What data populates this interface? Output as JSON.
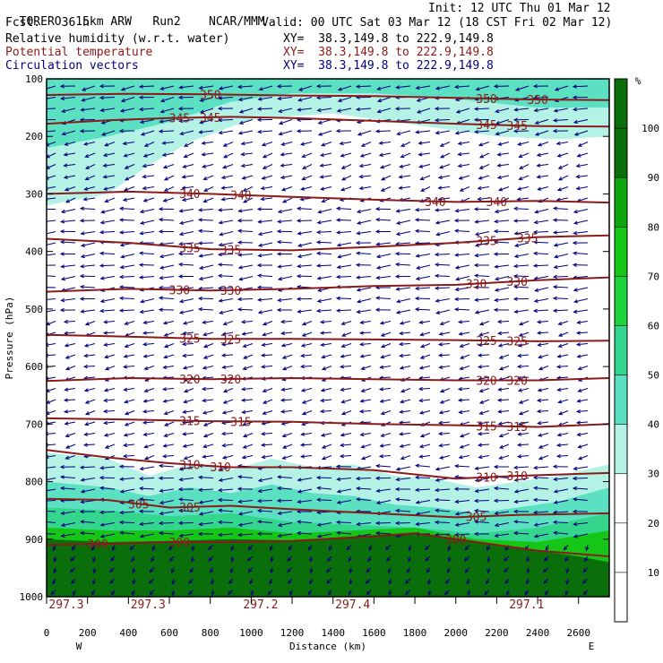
{
  "header": {
    "model": "TORERO",
    "grid": "15km ARW",
    "run": "Run2",
    "agency": "NCAR/MMM",
    "init": "Init: 12 UTC Thu 01 Mar 12",
    "fcst_label": "Fcst.",
    "fcst_value": "36 h",
    "valid": "Valid: 00 UTC Sat 03 Mar 12 (18 CST Fri 02 Mar 12)"
  },
  "fields": [
    {
      "label": "Relative humidity (w.r.t. water)",
      "xy": "XY=  38.3,149.8 to 222.9,149.8",
      "color": "#000000"
    },
    {
      "label": "Potential temperature",
      "xy": "XY=  38.3,149.8 to 222.9,149.8",
      "color": "#8b1a1a"
    },
    {
      "label": "Circulation vectors",
      "xy": "XY=  38.3,149.8 to 222.9,149.8",
      "color": "#00007a"
    }
  ],
  "chart_data": {
    "type": "cross-section",
    "xlabel": "Distance (km)",
    "ylabel": "Pressure (hPa)",
    "xlim": [
      0,
      2750
    ],
    "ylim": [
      1000,
      100
    ],
    "x_ticks": [
      0,
      200,
      400,
      600,
      800,
      1000,
      1200,
      1400,
      1600,
      1800,
      2000,
      2200,
      2400,
      2600
    ],
    "y_ticks": [
      100,
      200,
      300,
      400,
      500,
      600,
      700,
      800,
      900,
      1000
    ],
    "x_end_labels": {
      "left": "W",
      "right": "E"
    },
    "colorbar": {
      "unit": "%",
      "ticks": [
        10,
        20,
        30,
        40,
        50,
        60,
        70,
        80,
        90,
        100
      ],
      "bins": [
        {
          "from": 0,
          "to": 30,
          "color": "#ffffff"
        },
        {
          "from": 30,
          "to": 40,
          "color": "#b4f2e6"
        },
        {
          "from": 40,
          "to": 50,
          "color": "#5ce0c2"
        },
        {
          "from": 50,
          "to": 60,
          "color": "#34d68e"
        },
        {
          "from": 60,
          "to": 70,
          "color": "#1ed43c"
        },
        {
          "from": 70,
          "to": 80,
          "color": "#16c616"
        },
        {
          "from": 80,
          "to": 90,
          "color": "#0ea60e"
        },
        {
          "from": 90,
          "to": 110,
          "color": "#0a6e0a"
        }
      ]
    },
    "theta_contours": [
      {
        "value": 350,
        "labels_km": [
          800,
          2150,
          2400
        ],
        "p": [
          [
            0,
            128
          ],
          [
            400,
            126
          ],
          [
            800,
            127
          ],
          [
            1200,
            129
          ],
          [
            1600,
            130
          ],
          [
            2000,
            133
          ],
          [
            2400,
            136
          ],
          [
            2750,
            137
          ]
        ]
      },
      {
        "value": 345,
        "labels_km": [
          650,
          800,
          2150,
          2300
        ],
        "p": [
          [
            0,
            178
          ],
          [
            300,
            172
          ],
          [
            600,
            168
          ],
          [
            900,
            166
          ],
          [
            1200,
            168
          ],
          [
            1600,
            173
          ],
          [
            2000,
            178
          ],
          [
            2400,
            182
          ],
          [
            2750,
            183
          ]
        ]
      },
      {
        "value": 340,
        "labels_km": [
          700,
          950,
          1900,
          2200
        ],
        "p": [
          [
            0,
            300
          ],
          [
            400,
            296
          ],
          [
            800,
            300
          ],
          [
            1200,
            305
          ],
          [
            1600,
            310
          ],
          [
            2000,
            314
          ],
          [
            2400,
            312
          ],
          [
            2750,
            315
          ]
        ]
      },
      {
        "value": 335,
        "labels_km": [
          700,
          900,
          2150,
          2350
        ],
        "p": [
          [
            0,
            378
          ],
          [
            400,
            385
          ],
          [
            800,
            396
          ],
          [
            1200,
            398
          ],
          [
            1600,
            392
          ],
          [
            2000,
            385
          ],
          [
            2400,
            375
          ],
          [
            2750,
            372
          ]
        ]
      },
      {
        "value": 330,
        "labels_km": [
          650,
          900,
          2100,
          2300
        ],
        "p": [
          [
            0,
            470
          ],
          [
            400,
            465
          ],
          [
            800,
            468
          ],
          [
            1200,
            465
          ],
          [
            1600,
            460
          ],
          [
            2000,
            458
          ],
          [
            2400,
            450
          ],
          [
            2750,
            445
          ]
        ]
      },
      {
        "value": 325,
        "labels_km": [
          700,
          900,
          2150,
          2300
        ],
        "p": [
          [
            0,
            545
          ],
          [
            400,
            548
          ],
          [
            800,
            552
          ],
          [
            1200,
            552
          ],
          [
            1600,
            553
          ],
          [
            2000,
            554
          ],
          [
            2400,
            556
          ],
          [
            2750,
            555
          ]
        ]
      },
      {
        "value": 320,
        "labels_km": [
          700,
          900,
          2150,
          2300
        ],
        "p": [
          [
            0,
            625
          ],
          [
            400,
            620
          ],
          [
            800,
            622
          ],
          [
            1200,
            620
          ],
          [
            1600,
            622
          ],
          [
            2000,
            624
          ],
          [
            2400,
            624
          ],
          [
            2750,
            620
          ]
        ]
      },
      {
        "value": 315,
        "labels_km": [
          700,
          950,
          2150,
          2300
        ],
        "p": [
          [
            0,
            690
          ],
          [
            400,
            692
          ],
          [
            800,
            695
          ],
          [
            1200,
            696
          ],
          [
            1600,
            700
          ],
          [
            2000,
            702
          ],
          [
            2400,
            705
          ],
          [
            2750,
            700
          ]
        ]
      },
      {
        "value": 310,
        "labels_km": [
          700,
          850,
          2150,
          2300
        ],
        "p": [
          [
            0,
            745
          ],
          [
            300,
            758
          ],
          [
            600,
            768
          ],
          [
            900,
            775
          ],
          [
            1200,
            775
          ],
          [
            1600,
            780
          ],
          [
            2000,
            795
          ],
          [
            2300,
            790
          ],
          [
            2750,
            785
          ]
        ]
      },
      {
        "value": 305,
        "labels_km": [
          450,
          700,
          2100
        ],
        "p": [
          [
            0,
            830
          ],
          [
            300,
            832
          ],
          [
            600,
            845
          ],
          [
            900,
            842
          ],
          [
            1200,
            848
          ],
          [
            1600,
            855
          ],
          [
            2000,
            862
          ],
          [
            2300,
            858
          ],
          [
            2750,
            855
          ]
        ]
      },
      {
        "value": 300,
        "labels_km": [
          250,
          650,
          2000
        ],
        "p": [
          [
            0,
            910
          ],
          [
            300,
            908
          ],
          [
            600,
            905
          ],
          [
            900,
            905
          ],
          [
            1200,
            903
          ],
          [
            1600,
            895
          ],
          [
            1800,
            890
          ],
          [
            2000,
            900
          ],
          [
            2400,
            920
          ],
          [
            2750,
            930
          ]
        ]
      }
    ],
    "surface_labels": [
      {
        "value": "297.3",
        "km": 0
      },
      {
        "value": "297.3",
        "km": 400
      },
      {
        "value": "297.2",
        "km": 950
      },
      {
        "value": "297.4",
        "km": 1400
      },
      {
        "value": "297.1",
        "km": 2250
      }
    ],
    "rh_regions": [
      {
        "rh": 35,
        "p": [
          [
            0,
            100
          ],
          [
            2750,
            100
          ],
          [
            2750,
            200
          ],
          [
            2500,
            205
          ],
          [
            2200,
            200
          ],
          [
            1800,
            180
          ],
          [
            1400,
            160
          ],
          [
            1000,
            170
          ],
          [
            700,
            210
          ],
          [
            500,
            250
          ],
          [
            300,
            300
          ],
          [
            0,
            320
          ]
        ]
      },
      {
        "rh": 45,
        "p": [
          [
            0,
            100
          ],
          [
            2750,
            100
          ],
          [
            2750,
            150
          ],
          [
            2400,
            150
          ],
          [
            2000,
            135
          ],
          [
            1600,
            125
          ],
          [
            1200,
            125
          ],
          [
            900,
            140
          ],
          [
            600,
            175
          ],
          [
            300,
            200
          ],
          [
            0,
            220
          ]
        ]
      },
      {
        "rh": 35,
        "p": [
          [
            0,
            750
          ],
          [
            300,
            760
          ],
          [
            500,
            790
          ],
          [
            700,
            770
          ],
          [
            900,
            780
          ],
          [
            1100,
            760
          ],
          [
            1300,
            775
          ],
          [
            1500,
            770
          ],
          [
            1700,
            790
          ],
          [
            1900,
            795
          ],
          [
            2100,
            810
          ],
          [
            2300,
            800
          ],
          [
            2500,
            790
          ],
          [
            2750,
            770
          ],
          [
            2750,
            1000
          ],
          [
            0,
            1000
          ]
        ]
      },
      {
        "rh": 45,
        "p": [
          [
            0,
            800
          ],
          [
            300,
            810
          ],
          [
            500,
            825
          ],
          [
            700,
            810
          ],
          [
            900,
            820
          ],
          [
            1100,
            805
          ],
          [
            1300,
            820
          ],
          [
            1500,
            825
          ],
          [
            1700,
            840
          ],
          [
            1900,
            845
          ],
          [
            2100,
            855
          ],
          [
            2300,
            845
          ],
          [
            2500,
            835
          ],
          [
            2750,
            810
          ],
          [
            2750,
            1000
          ],
          [
            0,
            1000
          ]
        ]
      },
      {
        "rh": 55,
        "p": [
          [
            0,
            845
          ],
          [
            300,
            850
          ],
          [
            600,
            860
          ],
          [
            900,
            855
          ],
          [
            1200,
            870
          ],
          [
            1500,
            875
          ],
          [
            1800,
            880
          ],
          [
            2100,
            890
          ],
          [
            2400,
            880
          ],
          [
            2750,
            855
          ],
          [
            2750,
            1000
          ],
          [
            0,
            1000
          ]
        ]
      },
      {
        "rh": 75,
        "p": [
          [
            0,
            880
          ],
          [
            300,
            885
          ],
          [
            600,
            885
          ],
          [
            900,
            880
          ],
          [
            1200,
            890
          ],
          [
            1500,
            885
          ],
          [
            1800,
            880
          ],
          [
            2100,
            900
          ],
          [
            2400,
            905
          ],
          [
            2750,
            885
          ],
          [
            2750,
            1000
          ],
          [
            0,
            1000
          ]
        ]
      },
      {
        "rh": 95,
        "p": [
          [
            0,
            900
          ],
          [
            300,
            905
          ],
          [
            600,
            903
          ],
          [
            900,
            900
          ],
          [
            1200,
            902
          ],
          [
            1500,
            895
          ],
          [
            1800,
            888
          ],
          [
            2000,
            900
          ],
          [
            2300,
            915
          ],
          [
            2600,
            930
          ],
          [
            2750,
            940
          ],
          [
            2750,
            1000
          ],
          [
            0,
            1000
          ]
        ]
      }
    ],
    "wind_regimes": [
      {
        "p_top": 100,
        "p_bot": 200,
        "angle_deg": 15,
        "len": 1.0
      },
      {
        "p_top": 200,
        "p_bot": 320,
        "angle_deg": 25,
        "len": 0.8
      },
      {
        "p_top": 320,
        "p_bot": 520,
        "angle_deg": 8,
        "len": 1.0
      },
      {
        "p_top": 520,
        "p_bot": 760,
        "angle_deg": 20,
        "len": 0.75
      },
      {
        "p_top": 760,
        "p_bot": 900,
        "angle_deg": 5,
        "len": 1.0
      },
      {
        "p_top": 900,
        "p_bot": 1000,
        "angle_deg": 70,
        "len": 0.6
      }
    ]
  }
}
